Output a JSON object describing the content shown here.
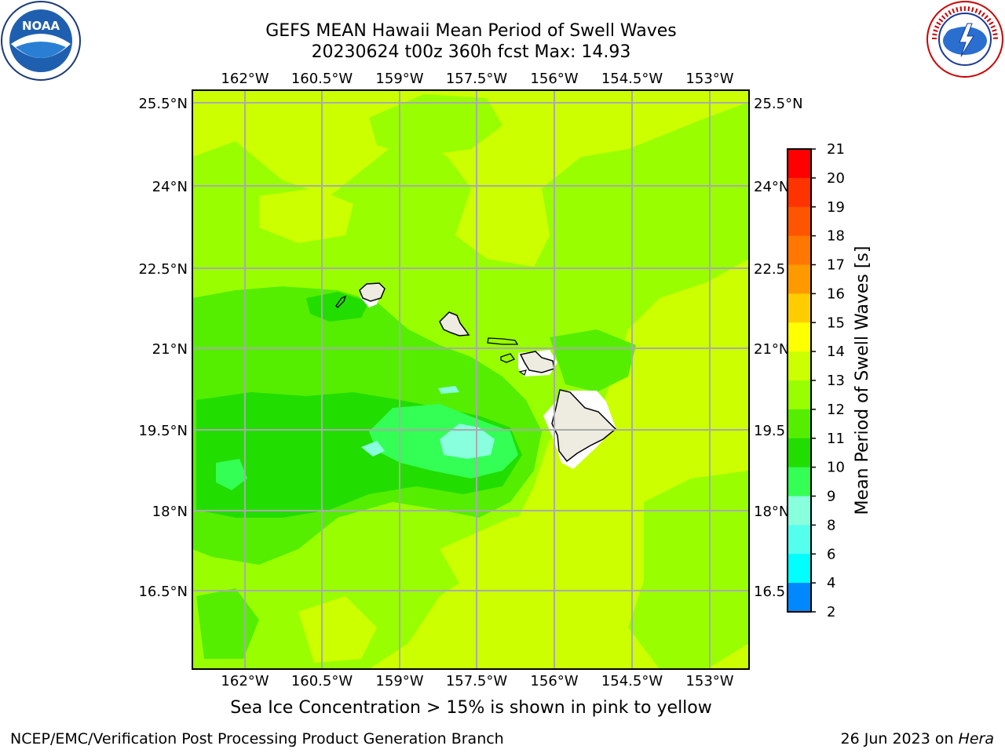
{
  "header": {
    "title_line1": "GEFS MEAN Hawaii Mean Period of Swell Waves",
    "title_line2": "20230624 t00z 360h fcst   Max: 14.93"
  },
  "logos": {
    "noaa": {
      "text": "NOAA",
      "ring_text": "NATIONAL OCEANIC AND ATMOSPHERIC ADMINISTRATION · U.S. DEPARTMENT OF COMMERCE"
    },
    "nws": {
      "ring_text": "NATIONAL WEATHER SERVICE"
    }
  },
  "map": {
    "lon_labels": [
      "162°W",
      "160.5°W",
      "159°W",
      "157.5°W",
      "156°W",
      "154.5°W",
      "153°W"
    ],
    "lat_labels": [
      "25.5°N",
      "24°N",
      "22.5°N",
      "21°N",
      "19.5°N",
      "18°N",
      "16.5°N"
    ],
    "lat_labels_right": [
      "25.5°N",
      "24°N",
      "22.5",
      "21°N",
      "19.5",
      "18°N",
      "16.5"
    ],
    "field_colors": {
      "lime": "#ccff00",
      "yellow_green": "#99ff00",
      "green": "#33ee00",
      "bright_green": "#22ff44",
      "aqua": "#88ffdd",
      "land": "#eeebe0"
    }
  },
  "colorbar": {
    "label": "Mean Period of Swell Waves [s]",
    "ticks": [
      "21",
      "20",
      "19",
      "18",
      "17",
      "16",
      "15",
      "14",
      "13",
      "12",
      "11",
      "10",
      "9",
      "8",
      "6",
      "4",
      "2"
    ],
    "colors": [
      "#ff0000",
      "#ff3300",
      "#ff5500",
      "#ff7700",
      "#ff9900",
      "#ffcc00",
      "#ffff00",
      "#ccff00",
      "#99ff00",
      "#55ee00",
      "#22dd00",
      "#33ff55",
      "#88ffdd",
      "#55ffee",
      "#00ffff",
      "#0088ff",
      "#0000ff"
    ]
  },
  "caption": "Sea Ice Concentration > 15% is shown in pink to yellow",
  "footer": {
    "left": "NCEP/EMC/Verification Post Processing Product Generation Branch",
    "right_date": "26 Jun 2023 on ",
    "right_host": "Hera"
  }
}
